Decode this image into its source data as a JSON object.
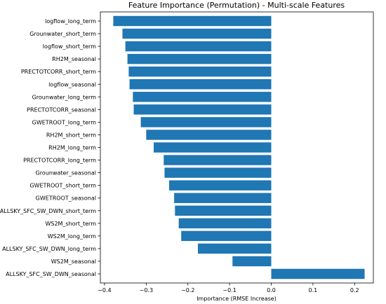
{
  "chart_data": {
    "type": "bar",
    "orientation": "horizontal",
    "title": "Feature Importance (Permutation) - Multi-scale Features",
    "xlabel": "Importance (RMSE Increase)",
    "ylabel": "",
    "xlim": [
      -0.41,
      0.245
    ],
    "xticks": [
      -0.4,
      -0.3,
      -0.2,
      -0.1,
      0.0,
      0.1,
      0.2
    ],
    "xtick_labels": [
      "−0.4",
      "−0.3",
      "−0.2",
      "−0.1",
      "0.0",
      "0.1",
      "0.2"
    ],
    "grid": false,
    "bar_color": "#1f77b4",
    "categories": [
      "logflow_long_term",
      "Grounwater_short_term",
      "logflow_short_term",
      "RH2M_seasonal",
      "PRECTOTCORR_short_term",
      "logflow_seasonal",
      "Grounwater_long_term",
      "PRECTOTCORR_seasonal",
      "GWETROOT_long_term",
      "RH2M_short_term",
      "RH2M_long_term",
      "PRECTOTCORR_long_term",
      "Grounwater_seasonal",
      "GWETROOT_short_term",
      "GWETROOT_seasonal",
      "ALLSKY_SFC_SW_DWN_short_term",
      "WS2M_short_term",
      "WS2M_long_term",
      "ALLSKY_SFC_SW_DWN_long_term",
      "WS2M_seasonal",
      "ALLSKY_SFC_SW_DWN_seasonal"
    ],
    "values": [
      -0.379,
      -0.357,
      -0.35,
      -0.345,
      -0.342,
      -0.34,
      -0.332,
      -0.33,
      -0.313,
      -0.3,
      -0.282,
      -0.258,
      -0.256,
      -0.245,
      -0.233,
      -0.231,
      -0.222,
      -0.216,
      -0.176,
      -0.093,
      0.224
    ]
  }
}
